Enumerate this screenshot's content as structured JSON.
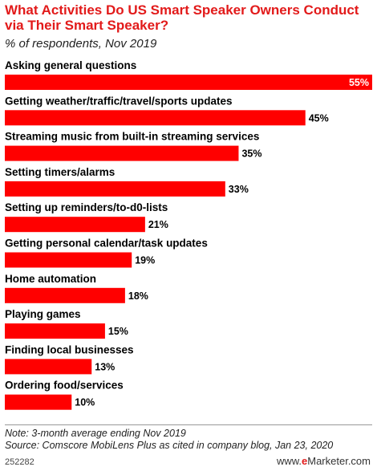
{
  "title": "What Activities Do US Smart Speaker Owners Conduct via Their Smart Speaker?",
  "subtitle": "% of respondents, Nov 2019",
  "chart_data": {
    "type": "bar",
    "orientation": "horizontal",
    "categories": [
      "Asking general questions",
      "Getting weather/traffic/travel/sports updates",
      "Streaming music from built-in streaming services",
      "Setting timers/alarms",
      "Setting up reminders/to-d0-lists",
      "Getting personal calendar/task updates",
      "Home automation",
      "Playing games",
      "Finding local businesses",
      "Ordering food/services"
    ],
    "values": [
      55,
      45,
      35,
      33,
      21,
      19,
      18,
      15,
      13,
      10
    ],
    "labels": [
      "55%",
      "45%",
      "35%",
      "33%",
      "21%",
      "19%",
      "18%",
      "15%",
      "13%",
      "10%"
    ],
    "xlim": [
      0,
      55
    ],
    "bar_color": "#ff0000",
    "grid": false
  },
  "footer": {
    "note": "Note: 3-month average ending Nov 2019",
    "source": "Source: Comscore MobiLens Plus as cited in company blog, Jan 23, 2020",
    "code": "252282",
    "brand_prefix": "www.",
    "brand_e": "e",
    "brand_rest": "Marketer.com"
  }
}
